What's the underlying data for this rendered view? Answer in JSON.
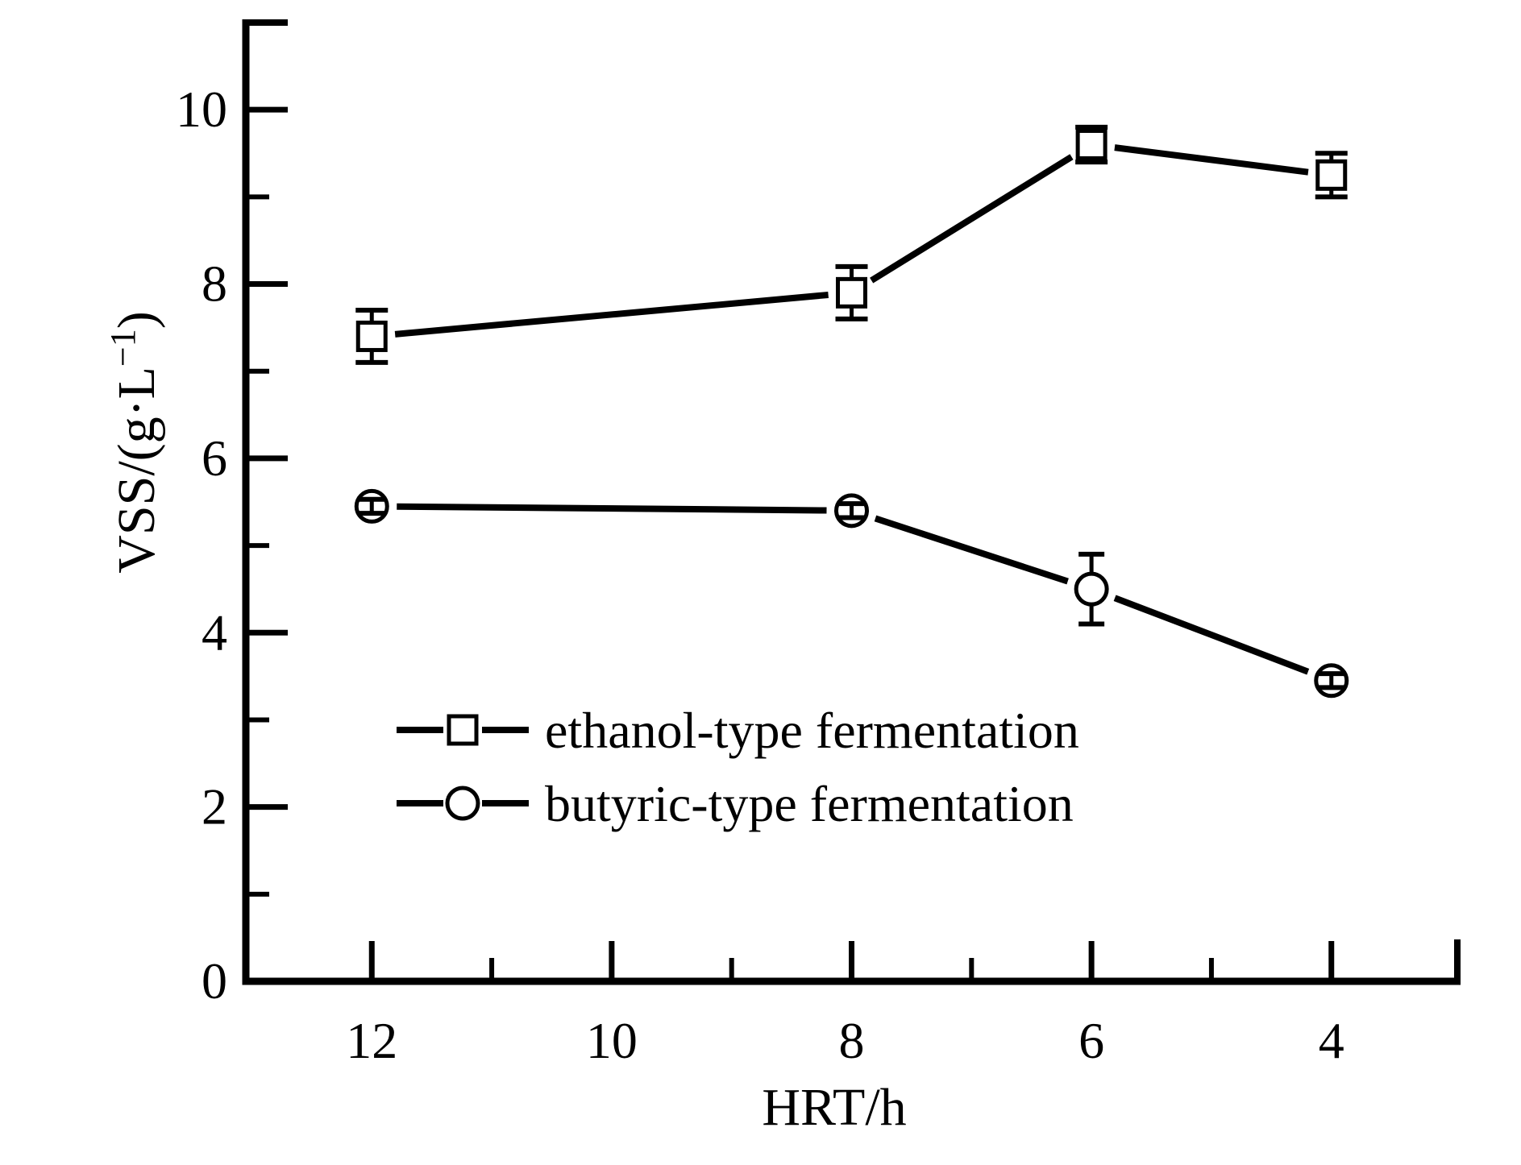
{
  "figure": {
    "background": "#ffffff",
    "foreground": "#000000"
  },
  "chart_data": {
    "type": "line",
    "title": "",
    "xlabel": "HRT/h",
    "ylabel": "VSS/(g·L−1)",
    "ylabel_parts": {
      "prefix": "VSS/(g·L",
      "sup": "−1",
      "suffix": ")"
    },
    "x": [
      12,
      8,
      6,
      4
    ],
    "x_axis_reversed": true,
    "xlim": [
      13.05,
      2.95
    ],
    "ylim": [
      0,
      11
    ],
    "x_major_ticks": [
      12,
      10,
      8,
      6,
      4
    ],
    "x_minor_ticks": [
      11,
      9,
      7,
      5
    ],
    "x_tick_labels": [
      "12",
      "10",
      "8",
      "6",
      "4"
    ],
    "y_major_ticks": [
      0,
      2,
      4,
      6,
      8,
      10
    ],
    "y_minor_ticks": [
      1,
      3,
      5,
      7,
      9
    ],
    "y_tick_labels": [
      "0",
      "2",
      "4",
      "6",
      "8",
      "10"
    ],
    "grid": false,
    "legend_position": "lower-left-inside",
    "series": [
      {
        "name": "ethanol-type fermentation",
        "marker": "square",
        "marker_fill": "#ffffff",
        "line_style": "solid",
        "values": [
          7.4,
          7.9,
          9.6,
          9.25
        ],
        "errors": [
          0.3,
          0.3,
          0.2,
          0.25
        ]
      },
      {
        "name": "butyric-type fermentation",
        "marker": "circle",
        "marker_fill": "#ffffff",
        "line_style": "solid",
        "values": [
          5.45,
          5.4,
          4.5,
          3.45
        ],
        "errors": [
          0.08,
          0.08,
          0.4,
          0.08
        ]
      }
    ],
    "colors": {
      "foreground": "#000000",
      "background": "#ffffff"
    }
  }
}
